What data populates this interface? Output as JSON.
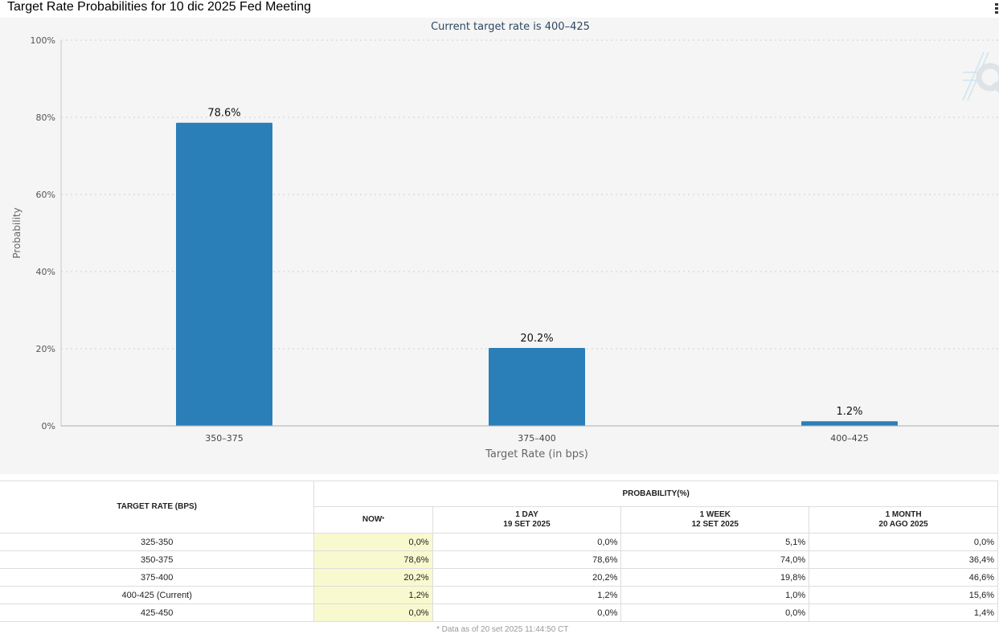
{
  "page_title": "Target Rate Probabilities for 10 dic 2025 Fed Meeting",
  "chart_data": {
    "type": "bar",
    "subtitle": "Current target rate is 400–425",
    "categories": [
      "350–375",
      "375–400",
      "400–425"
    ],
    "values": [
      78.6,
      20.2,
      1.2
    ],
    "data_labels": [
      "78.6%",
      "20.2%",
      "1.2%"
    ],
    "xlabel": "Target Rate (in bps)",
    "ylabel": "Probability",
    "ylim": [
      0,
      100
    ],
    "yticks": [
      "0%",
      "20%",
      "40%",
      "60%",
      "80%",
      "100%"
    ],
    "bar_color": "#2b7fb8",
    "grid": true
  },
  "table": {
    "rate_header": "TARGET RATE (BPS)",
    "prob_header": "PROBABILITY(%)",
    "now_header": "NOW",
    "now_marker": "*",
    "columns": [
      {
        "label": "1 DAY",
        "date": "19 SET 2025"
      },
      {
        "label": "1 WEEK",
        "date": "12 SET 2025"
      },
      {
        "label": "1 MONTH",
        "date": "20 AGO 2025"
      }
    ],
    "rows": [
      {
        "rate": "325-350",
        "now": "0,0%",
        "day": "0,0%",
        "week": "5,1%",
        "month": "0,0%"
      },
      {
        "rate": "350-375",
        "now": "78,6%",
        "day": "78,6%",
        "week": "74,0%",
        "month": "36,4%"
      },
      {
        "rate": "375-400",
        "now": "20,2%",
        "day": "20,2%",
        "week": "19,8%",
        "month": "46,6%"
      },
      {
        "rate": "400-425 (Current)",
        "now": "1,2%",
        "day": "1,2%",
        "week": "1,0%",
        "month": "15,6%"
      },
      {
        "rate": "425-450",
        "now": "0,0%",
        "day": "0,0%",
        "week": "0,0%",
        "month": "1,4%"
      }
    ]
  },
  "footnote": "* Data as of 20 set 2025 11:44:50 CT"
}
